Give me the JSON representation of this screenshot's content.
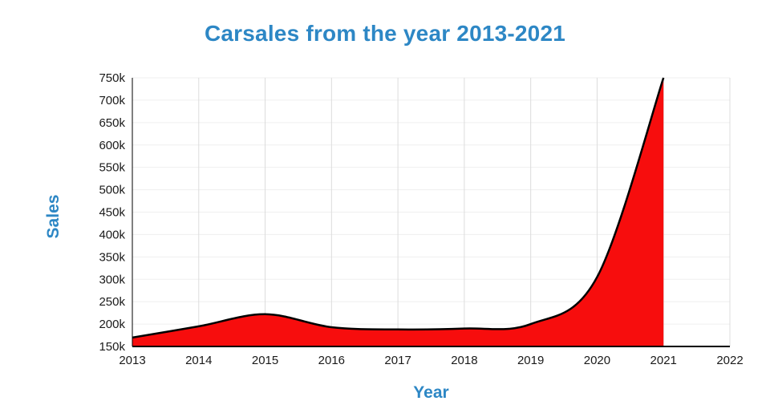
{
  "chart_data": {
    "type": "area",
    "title": "Carsales from the year 2013-2021",
    "xlabel": "Year",
    "ylabel": "Sales",
    "x": [
      2013,
      2014,
      2015,
      2016,
      2017,
      2018,
      2019,
      2020,
      2021
    ],
    "values": [
      170000,
      195000,
      222000,
      193000,
      188000,
      190000,
      200000,
      305000,
      750000
    ],
    "xlim": [
      2013,
      2022
    ],
    "ylim": [
      150000,
      750000
    ],
    "x_ticks": [
      {
        "value": 2013,
        "label": "2013"
      },
      {
        "value": 2014,
        "label": "2014"
      },
      {
        "value": 2015,
        "label": "2015"
      },
      {
        "value": 2016,
        "label": "2016"
      },
      {
        "value": 2017,
        "label": "2017"
      },
      {
        "value": 2018,
        "label": "2018"
      },
      {
        "value": 2019,
        "label": "2019"
      },
      {
        "value": 2020,
        "label": "2020"
      },
      {
        "value": 2021,
        "label": "2021"
      },
      {
        "value": 2022,
        "label": "2022"
      }
    ],
    "y_ticks": [
      {
        "value": 150000,
        "label": "150k"
      },
      {
        "value": 200000,
        "label": "200k"
      },
      {
        "value": 250000,
        "label": "250k"
      },
      {
        "value": 300000,
        "label": "300k"
      },
      {
        "value": 350000,
        "label": "350k"
      },
      {
        "value": 400000,
        "label": "400k"
      },
      {
        "value": 450000,
        "label": "450k"
      },
      {
        "value": 500000,
        "label": "500k"
      },
      {
        "value": 550000,
        "label": "550k"
      },
      {
        "value": 600000,
        "label": "600k"
      },
      {
        "value": 650000,
        "label": "650k"
      },
      {
        "value": 700000,
        "label": "700k"
      },
      {
        "value": 750000,
        "label": "750k"
      }
    ],
    "grid": true,
    "legend": "none",
    "fill_color": "#f70d0d",
    "line_color": "#000000",
    "vgrid_color": "#dcdcdc",
    "hgrid_color": "#efefef",
    "axis_color": "#000000",
    "tick_color": "#1a1a1a",
    "title_color": "#2d87c5",
    "axis_label_color": "#2d87c5"
  }
}
